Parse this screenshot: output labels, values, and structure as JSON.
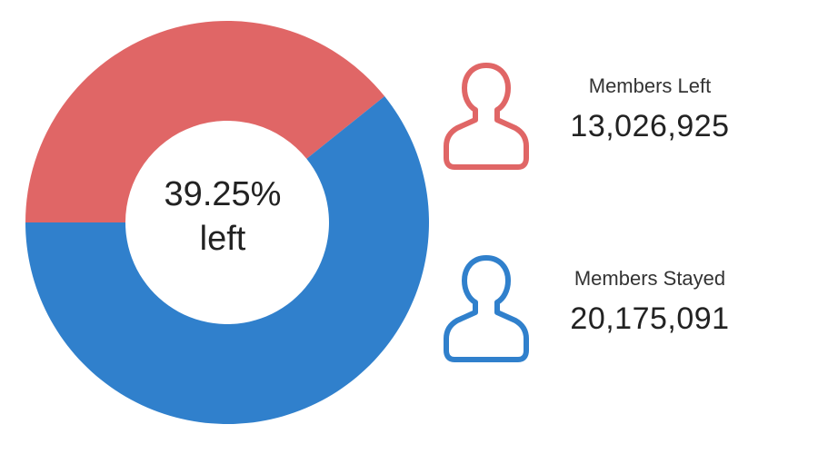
{
  "colors": {
    "left": "#e06666",
    "stayed": "#3080cc"
  },
  "center": {
    "line1": "39.25%",
    "line2": "left"
  },
  "stats": {
    "left": {
      "label": "Members Left",
      "value": "13,026,925",
      "icon": "user-icon"
    },
    "stayed": {
      "label": "Members Stayed",
      "value": "20,175,091",
      "icon": "user-icon"
    }
  },
  "chart_data": {
    "type": "pie",
    "variant": "donut",
    "categories": [
      "Members Left",
      "Members Stayed"
    ],
    "values": [
      13026925,
      20175091
    ],
    "percent_left": 39.25
  }
}
